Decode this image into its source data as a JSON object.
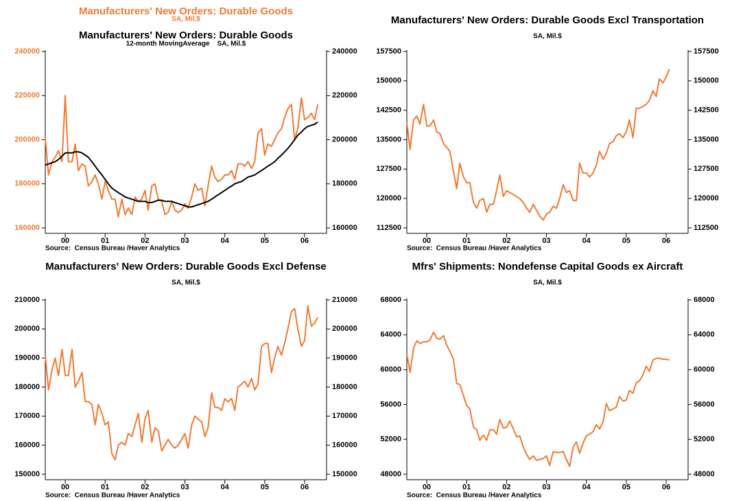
{
  "chart_data": [
    {
      "type": "line",
      "series": [
        {
          "name": "Manufacturers' New Orders: Durable Goods",
          "subtitle": "SA, Mil.$",
          "color": "#f07a32",
          "values": [
            201000,
            184000,
            190000,
            192000,
            195000,
            190000,
            220000,
            190000,
            190000,
            198000,
            186000,
            189000,
            188000,
            179000,
            181000,
            184000,
            180000,
            173000,
            181000,
            177000,
            173000,
            173000,
            165000,
            173000,
            166000,
            169000,
            166000,
            174000,
            172000,
            173000,
            177000,
            168000,
            179000,
            180000,
            173000,
            172000,
            166000,
            167000,
            172000,
            168000,
            167000,
            168000,
            171000,
            169000,
            174000,
            180000,
            177000,
            178000,
            170000,
            179000,
            188000,
            183000,
            181000,
            182000,
            184000,
            184000,
            186000,
            182000,
            189000,
            189000,
            188000,
            190000,
            187000,
            190000,
            203000,
            205000,
            193000,
            198000,
            197000,
            200000,
            203000,
            205000,
            210000,
            214000,
            216000,
            200000,
            205000,
            219000,
            209000,
            210000,
            212000,
            209000,
            216000
          ]
        },
        {
          "name": "Manufacturers' New Orders: Durable Goods",
          "subtitle": "12-month MovingAverage    SA, Mil.$",
          "color": "#000000",
          "axis": "y2",
          "values": [
            188500,
            189000,
            189500,
            190000,
            191000,
            192500,
            194000,
            194000,
            194000,
            194500,
            194500,
            194000,
            193000,
            192000,
            190000,
            188000,
            186000,
            184000,
            182000,
            180000,
            178000,
            177000,
            176000,
            175000,
            174000,
            173500,
            173000,
            172500,
            172000,
            172000,
            172000,
            171500,
            171500,
            172000,
            172500,
            172500,
            172000,
            172000,
            172000,
            171500,
            171000,
            170500,
            170000,
            169500,
            169500,
            170000,
            170500,
            171000,
            171500,
            172000,
            173000,
            174000,
            175000,
            176000,
            177000,
            178000,
            179000,
            180000,
            180500,
            181000,
            182000,
            183000,
            183500,
            184000,
            185000,
            186000,
            187000,
            188000,
            189000,
            190000,
            191500,
            193000,
            194500,
            196000,
            198000,
            200000,
            202000,
            203500,
            205000,
            206000,
            206500,
            207000,
            208000
          ]
        }
      ],
      "x": [
        1999.5,
        1999.58,
        1999.67,
        1999.75,
        1999.83,
        1999.92,
        2000,
        2000.08,
        2000.17,
        2000.25,
        2000.33,
        2000.42,
        2000.5,
        2000.58,
        2000.67,
        2000.75,
        2000.83,
        2000.92,
        2001,
        2001.08,
        2001.17,
        2001.25,
        2001.33,
        2001.42,
        2001.5,
        2001.58,
        2001.67,
        2001.75,
        2001.83,
        2001.92,
        2002,
        2002.08,
        2002.17,
        2002.25,
        2002.33,
        2002.42,
        2002.5,
        2002.58,
        2002.67,
        2002.75,
        2002.83,
        2002.92,
        2003,
        2003.08,
        2003.17,
        2003.25,
        2003.33,
        2003.42,
        2003.5,
        2003.58,
        2003.67,
        2003.75,
        2003.83,
        2003.92,
        2004,
        2004.08,
        2004.17,
        2004.25,
        2004.33,
        2004.42,
        2004.5,
        2004.58,
        2004.67,
        2004.75,
        2004.83,
        2004.92,
        2005,
        2005.08,
        2005.17,
        2005.25,
        2005.33,
        2005.42,
        2005.5,
        2005.58,
        2005.67,
        2005.75,
        2005.83,
        2005.92,
        2006,
        2006.08,
        2006.17,
        2006.25,
        2006.33
      ],
      "xlim": [
        1999.5,
        2006.55
      ],
      "xticks": [
        {
          "value": 2000,
          "label": "00"
        },
        {
          "value": 2001,
          "label": "01"
        },
        {
          "value": 2002,
          "label": "02"
        },
        {
          "value": 2003,
          "label": "03"
        },
        {
          "value": 2004,
          "label": "04"
        },
        {
          "value": 2005,
          "label": "05"
        },
        {
          "value": 2006,
          "label": "06"
        }
      ],
      "ylim": [
        160000,
        240000
      ],
      "yticks": [
        160000,
        180000,
        200000,
        220000,
        240000
      ],
      "y2lim": [
        160000,
        240000
      ],
      "y2ticks": [
        160000,
        180000,
        200000,
        220000,
        240000
      ],
      "source": "Source:  Census Bureau /Haver Analytics"
    },
    {
      "type": "line",
      "title": "Manufacturers' New Orders: Durable Goods Excl Transportation",
      "subtitle": "SA, Mil.$",
      "color": "#f07a32",
      "values": [
        139500,
        132500,
        140000,
        141000,
        139000,
        144000,
        138500,
        138500,
        140000,
        137000,
        136500,
        134000,
        133000,
        132000,
        127000,
        122500,
        129000,
        125500,
        124000,
        124000,
        119000,
        117500,
        119500,
        120000,
        116500,
        118500,
        118500,
        122000,
        126000,
        120500,
        122000,
        121500,
        121000,
        120500,
        120000,
        119000,
        117500,
        116500,
        118500,
        117000,
        115500,
        114500,
        116000,
        116500,
        118000,
        117500,
        120000,
        123500,
        121500,
        122000,
        119500,
        119500,
        129000,
        126500,
        126500,
        125500,
        126500,
        128500,
        132000,
        130000,
        131500,
        134000,
        134500,
        136000,
        136500,
        135500,
        137000,
        140000,
        135500,
        143000,
        143000,
        143500,
        144000,
        145000,
        147500,
        146000,
        150500,
        149500,
        151000,
        153000
      ],
      "x": [
        1999.5,
        1999.58,
        1999.67,
        1999.75,
        1999.83,
        1999.92,
        2000,
        2000.08,
        2000.17,
        2000.25,
        2000.33,
        2000.42,
        2000.5,
        2000.58,
        2000.67,
        2000.75,
        2000.83,
        2000.92,
        2001,
        2001.08,
        2001.17,
        2001.25,
        2001.33,
        2001.42,
        2001.5,
        2001.58,
        2001.67,
        2001.75,
        2001.83,
        2001.92,
        2002,
        2002.08,
        2002.17,
        2002.25,
        2002.33,
        2002.42,
        2002.5,
        2002.58,
        2002.67,
        2002.75,
        2002.83,
        2002.92,
        2003,
        2003.08,
        2003.17,
        2003.25,
        2003.33,
        2003.42,
        2003.5,
        2003.58,
        2003.67,
        2003.75,
        2003.83,
        2003.92,
        2004,
        2004.08,
        2004.17,
        2004.25,
        2004.33,
        2004.42,
        2004.5,
        2004.58,
        2004.67,
        2004.75,
        2004.83,
        2004.92,
        2005,
        2005.08,
        2005.17,
        2005.25,
        2005.33,
        2005.42,
        2005.5,
        2005.58,
        2005.67,
        2005.75,
        2005.83,
        2005.92,
        2006,
        2006.08
      ],
      "xlim": [
        1999.5,
        2006.55
      ],
      "xticks": [
        {
          "value": 2000,
          "label": "00"
        },
        {
          "value": 2001,
          "label": "01"
        },
        {
          "value": 2002,
          "label": "02"
        },
        {
          "value": 2003,
          "label": "03"
        },
        {
          "value": 2004,
          "label": "04"
        },
        {
          "value": 2005,
          "label": "05"
        },
        {
          "value": 2006,
          "label": "06"
        }
      ],
      "ylim": [
        112500,
        157500
      ],
      "yticks": [
        112500,
        120000,
        127500,
        135000,
        142500,
        150000,
        157500
      ],
      "source": "Source:  Census Bureau /Haver Analytics"
    },
    {
      "type": "line",
      "title": "Manufacturers' New Orders: Durable Goods Excl Defense",
      "subtitle": "SA, Mil.$",
      "color": "#f07a32",
      "values": [
        191000,
        179000,
        186000,
        190000,
        184000,
        193000,
        184000,
        184000,
        193000,
        180000,
        182000,
        185000,
        175000,
        175000,
        174000,
        167000,
        174000,
        171000,
        167000,
        168000,
        157000,
        155000,
        160000,
        161000,
        160000,
        164000,
        163000,
        167000,
        171000,
        161000,
        169000,
        172000,
        161000,
        166000,
        165000,
        158000,
        160000,
        162000,
        160000,
        159000,
        160000,
        162000,
        164000,
        159000,
        167000,
        170000,
        169000,
        168000,
        163000,
        166000,
        178000,
        173000,
        173000,
        172000,
        176000,
        175000,
        176000,
        172000,
        180000,
        181000,
        182000,
        180000,
        183000,
        179000,
        181000,
        194000,
        195000,
        195000,
        185000,
        190000,
        194000,
        191000,
        195000,
        200000,
        206000,
        207000,
        200000,
        194000,
        196000,
        208000,
        201000,
        202000,
        204000
      ],
      "x": [
        1999.5,
        1999.58,
        1999.67,
        1999.75,
        1999.83,
        1999.92,
        2000,
        2000.08,
        2000.17,
        2000.25,
        2000.33,
        2000.42,
        2000.5,
        2000.58,
        2000.67,
        2000.75,
        2000.83,
        2000.92,
        2001,
        2001.08,
        2001.17,
        2001.25,
        2001.33,
        2001.42,
        2001.5,
        2001.58,
        2001.67,
        2001.75,
        2001.83,
        2001.92,
        2002,
        2002.08,
        2002.17,
        2002.25,
        2002.33,
        2002.42,
        2002.5,
        2002.58,
        2002.67,
        2002.75,
        2002.83,
        2002.92,
        2003,
        2003.08,
        2003.17,
        2003.25,
        2003.33,
        2003.42,
        2003.5,
        2003.58,
        2003.67,
        2003.75,
        2003.83,
        2003.92,
        2004,
        2004.08,
        2004.17,
        2004.25,
        2004.33,
        2004.42,
        2004.5,
        2004.58,
        2004.67,
        2004.75,
        2004.83,
        2004.92,
        2005,
        2005.08,
        2005.17,
        2005.25,
        2005.33,
        2005.42,
        2005.5,
        2005.58,
        2005.67,
        2005.75,
        2005.83,
        2005.92,
        2006,
        2006.08,
        2006.17,
        2006.25,
        2006.33
      ],
      "xlim": [
        1999.5,
        2006.55
      ],
      "xticks": [
        {
          "value": 2000,
          "label": "00"
        },
        {
          "value": 2001,
          "label": "01"
        },
        {
          "value": 2002,
          "label": "02"
        },
        {
          "value": 2003,
          "label": "03"
        },
        {
          "value": 2004,
          "label": "04"
        },
        {
          "value": 2005,
          "label": "05"
        },
        {
          "value": 2006,
          "label": "06"
        }
      ],
      "ylim": [
        150000,
        210000
      ],
      "yticks": [
        150000,
        160000,
        170000,
        180000,
        190000,
        200000,
        210000
      ],
      "source": "Source:  Census Bureau /Haver Analytics"
    },
    {
      "type": "line",
      "title": "Mfrs' Shipments: Nondefense Capital Goods ex Aircraft",
      "subtitle": "SA, Mil.$",
      "color": "#f07a32",
      "values": [
        61800,
        59700,
        62500,
        63300,
        63000,
        63200,
        63200,
        63400,
        64300,
        63600,
        63500,
        63900,
        62800,
        62100,
        61200,
        58400,
        58300,
        57000,
        55900,
        55500,
        53400,
        53100,
        51900,
        52500,
        51900,
        53100,
        53100,
        52600,
        54300,
        53300,
        53400,
        54100,
        53200,
        52300,
        52400,
        51100,
        50300,
        49700,
        50100,
        49600,
        49700,
        49800,
        50100,
        49000,
        50600,
        50500,
        50500,
        50600,
        49700,
        48900,
        51100,
        51700,
        50400,
        51600,
        52400,
        52600,
        52900,
        53700,
        53200,
        54000,
        56100,
        55300,
        55500,
        55700,
        56900,
        56400,
        56500,
        57600,
        57300,
        58500,
        58700,
        59400,
        60400,
        59800,
        61100,
        61300,
        61300,
        61200,
        61200,
        61100
      ],
      "x": [
        1999.5,
        1999.58,
        1999.67,
        1999.75,
        1999.83,
        1999.92,
        2000,
        2000.08,
        2000.17,
        2000.25,
        2000.33,
        2000.42,
        2000.5,
        2000.58,
        2000.67,
        2000.75,
        2000.83,
        2000.92,
        2001,
        2001.08,
        2001.17,
        2001.25,
        2001.33,
        2001.42,
        2001.5,
        2001.58,
        2001.67,
        2001.75,
        2001.83,
        2001.92,
        2002,
        2002.08,
        2002.17,
        2002.25,
        2002.33,
        2002.42,
        2002.5,
        2002.58,
        2002.67,
        2002.75,
        2002.83,
        2002.92,
        2003,
        2003.08,
        2003.17,
        2003.25,
        2003.33,
        2003.42,
        2003.5,
        2003.58,
        2003.67,
        2003.75,
        2003.83,
        2003.92,
        2004,
        2004.08,
        2004.17,
        2004.25,
        2004.33,
        2004.42,
        2004.5,
        2004.58,
        2004.67,
        2004.75,
        2004.83,
        2004.92,
        2005,
        2005.08,
        2005.17,
        2005.25,
        2005.33,
        2005.42,
        2005.5,
        2005.58,
        2005.67,
        2005.75,
        2005.83,
        2005.92,
        2006,
        2006.08
      ],
      "xlim": [
        1999.5,
        2006.55
      ],
      "xticks": [
        {
          "value": 2000,
          "label": "00"
        },
        {
          "value": 2001,
          "label": "01"
        },
        {
          "value": 2002,
          "label": "02"
        },
        {
          "value": 2003,
          "label": "03"
        },
        {
          "value": 2004,
          "label": "04"
        },
        {
          "value": 2005,
          "label": "05"
        },
        {
          "value": 2006,
          "label": "06"
        }
      ],
      "ylim": [
        48000,
        68000
      ],
      "yticks": [
        48000,
        52000,
        56000,
        60000,
        64000,
        68000
      ],
      "source": "Source:  Census Bureau /Haver Analytics"
    }
  ]
}
